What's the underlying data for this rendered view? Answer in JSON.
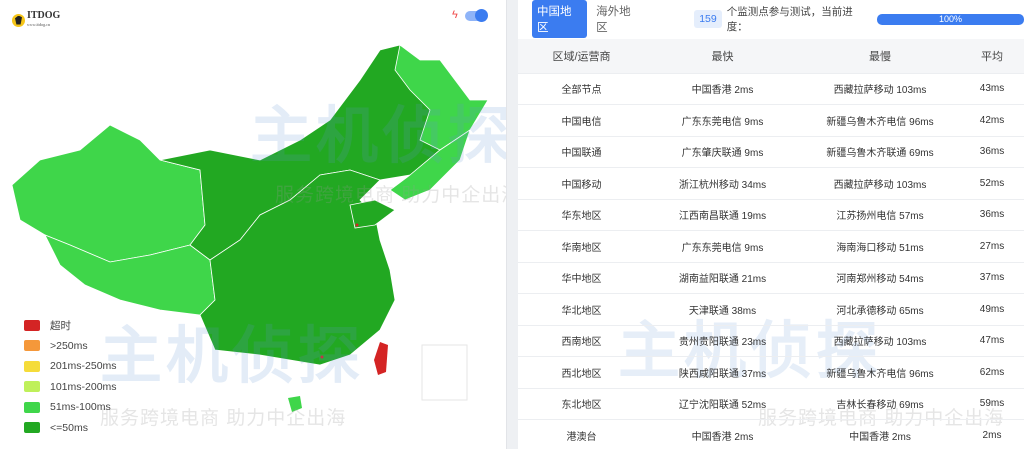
{
  "logo": {
    "name": "ITDOG",
    "sub": "www.itdog.cn"
  },
  "colors": {
    "accent": "#3b7cf0",
    "timeout": "#d42424",
    "gt250": "#f5983a",
    "r201_250": "#f5dc3a",
    "r101_200": "#bff05a",
    "r51_100": "#3fd64a",
    "le50": "#22a822"
  },
  "legend": [
    {
      "label": "超时",
      "color": "#d42424"
    },
    {
      "label": ">250ms",
      "color": "#f5983a"
    },
    {
      "label": "201ms-250ms",
      "color": "#f5dc3a"
    },
    {
      "label": "101ms-200ms",
      "color": "#bff05a"
    },
    {
      "label": "51ms-100ms",
      "color": "#3fd64a"
    },
    {
      "label": "<=50ms",
      "color": "#22a822"
    }
  ],
  "watermark": {
    "brand": "主机侦探",
    "slogan": "服务跨境电商 助力中企出海"
  },
  "tabs": [
    {
      "label": "中国地区",
      "active": true
    },
    {
      "label": "海外地区",
      "active": false
    }
  ],
  "status": {
    "count": "159",
    "message": "个监测点参与测试，当前进度：",
    "progress": "100%",
    "progress_value": 100
  },
  "table": {
    "headers": [
      "区域/运营商",
      "最快",
      "最慢",
      "平均"
    ],
    "rows": [
      [
        "全部节点",
        "中国香港 2ms",
        "西藏拉萨移动 103ms",
        "43ms"
      ],
      [
        "中国电信",
        "广东东莞电信 9ms",
        "新疆乌鲁木齐电信 96ms",
        "42ms"
      ],
      [
        "中国联通",
        "广东肇庆联通 9ms",
        "新疆乌鲁木齐联通 69ms",
        "36ms"
      ],
      [
        "中国移动",
        "浙江杭州移动 34ms",
        "西藏拉萨移动 103ms",
        "52ms"
      ],
      [
        "华东地区",
        "江西南昌联通 19ms",
        "江苏扬州电信 57ms",
        "36ms"
      ],
      [
        "华南地区",
        "广东东莞电信 9ms",
        "海南海口移动 51ms",
        "27ms"
      ],
      [
        "华中地区",
        "湖南益阳联通 21ms",
        "河南郑州移动 54ms",
        "37ms"
      ],
      [
        "华北地区",
        "天津联通 38ms",
        "河北承德移动 65ms",
        "49ms"
      ],
      [
        "西南地区",
        "贵州贵阳联通 23ms",
        "西藏拉萨移动 103ms",
        "47ms"
      ],
      [
        "西北地区",
        "陕西咸阳联通 37ms",
        "新疆乌鲁木齐电信 96ms",
        "62ms"
      ],
      [
        "东北地区",
        "辽宁沈阳联通 52ms",
        "吉林长春移动 69ms",
        "59ms"
      ],
      [
        "港澳台",
        "中国香港 2ms",
        "中国香港 2ms",
        "2ms"
      ]
    ]
  }
}
